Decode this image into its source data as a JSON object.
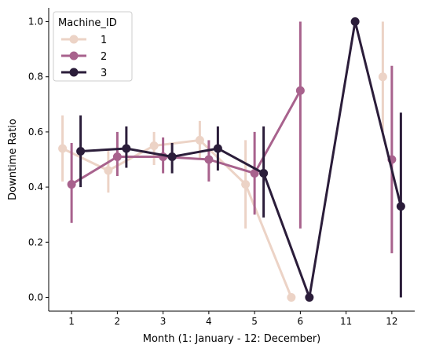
{
  "chart_data": {
    "type": "line",
    "subtype": "pointplot-with-error-bars",
    "title": "",
    "xlabel": "Month (1: January - 12: December)",
    "ylabel": "Downtime Ratio",
    "categories": [
      "1",
      "2",
      "3",
      "4",
      "5",
      "6",
      "11",
      "12"
    ],
    "ylim": [
      -0.05,
      1.05
    ],
    "yticks": [
      0.0,
      0.2,
      0.4,
      0.6,
      0.8,
      1.0
    ],
    "ytick_labels": [
      "0.0",
      "0.2",
      "0.4",
      "0.6",
      "0.8",
      "1.0"
    ],
    "grid": false,
    "spines": "left-bottom",
    "legend": {
      "title": "Machine_ID",
      "placement": "top-left"
    },
    "series": [
      {
        "name": "1",
        "color": "#ecd3c6",
        "values": [
          0.54,
          0.46,
          0.55,
          0.57,
          0.41,
          0.0,
          null,
          0.8
        ],
        "error_low": [
          0.42,
          0.38,
          0.48,
          0.5,
          0.25,
          null,
          null,
          0.6
        ],
        "error_high": [
          0.66,
          0.54,
          0.6,
          0.64,
          0.57,
          null,
          null,
          1.0
        ]
      },
      {
        "name": "2",
        "color": "#a8628d",
        "values": [
          0.41,
          0.51,
          0.51,
          0.5,
          0.45,
          0.75,
          null,
          0.5
        ],
        "error_low": [
          0.27,
          0.44,
          0.45,
          0.42,
          0.3,
          0.25,
          null,
          0.16
        ],
        "error_high": [
          0.56,
          0.6,
          0.58,
          0.57,
          0.6,
          1.0,
          null,
          0.84
        ]
      },
      {
        "name": "3",
        "color": "#2b1d3a",
        "values": [
          0.53,
          0.54,
          0.51,
          0.54,
          0.45,
          0.0,
          1.0,
          0.33
        ],
        "error_low": [
          0.4,
          0.47,
          0.45,
          0.46,
          0.29,
          null,
          null,
          0.0
        ],
        "error_high": [
          0.66,
          0.62,
          0.56,
          0.62,
          0.62,
          null,
          null,
          0.67
        ]
      }
    ]
  }
}
